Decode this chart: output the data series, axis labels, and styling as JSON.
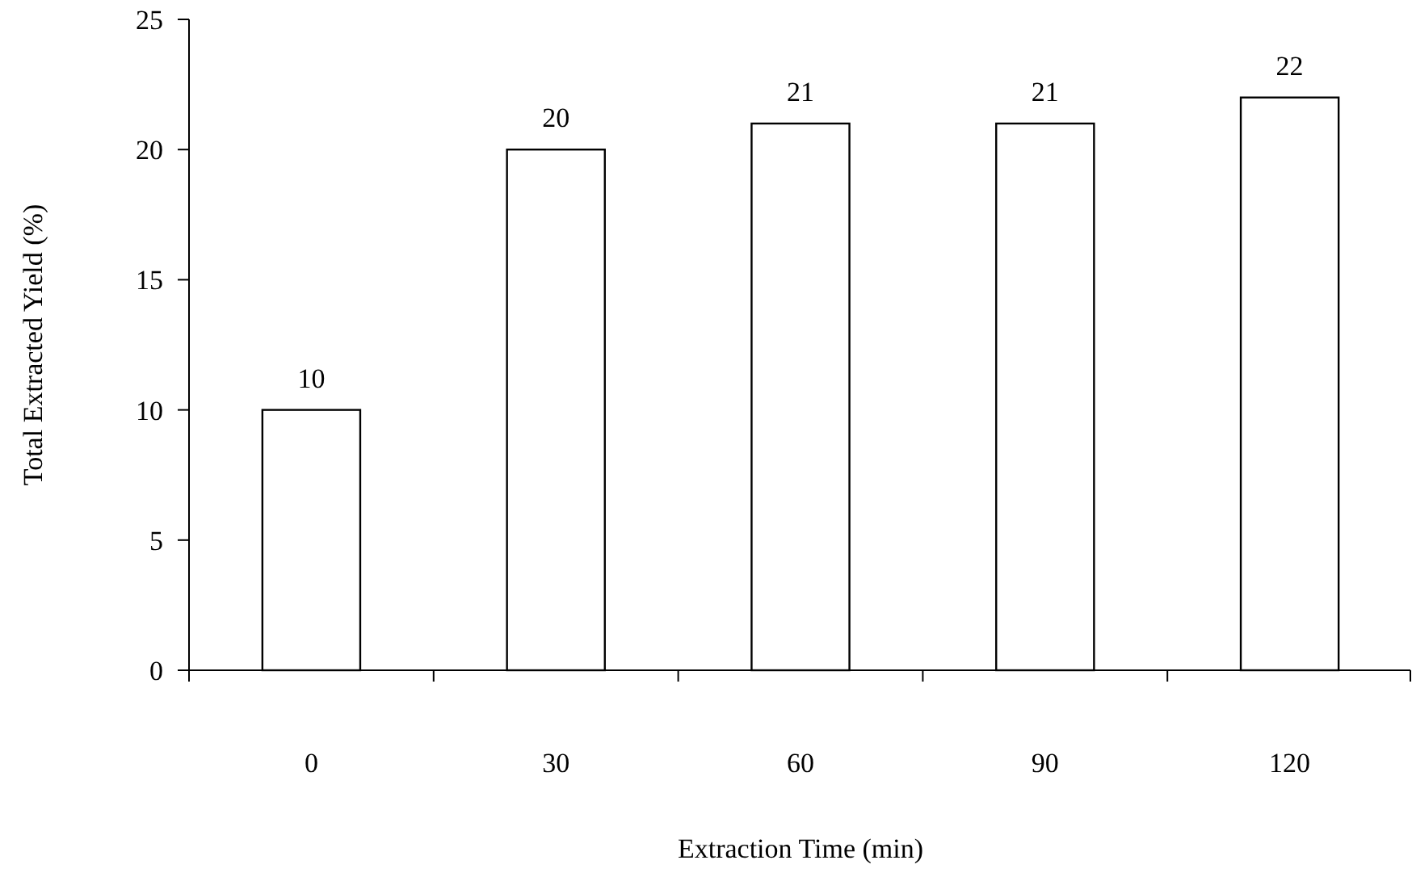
{
  "chart_data": {
    "type": "bar",
    "xlabel": "Extraction Time (min)",
    "ylabel": "Total Extracted Yield (%)",
    "categories": [
      "0",
      "30",
      "60",
      "90",
      "120"
    ],
    "values": [
      10,
      20,
      21,
      21,
      22
    ],
    "color": "#ffffff",
    "ylim": [
      0,
      25
    ],
    "yticks": [
      0,
      5,
      10,
      15,
      20,
      25
    ],
    "data_labels": true
  }
}
